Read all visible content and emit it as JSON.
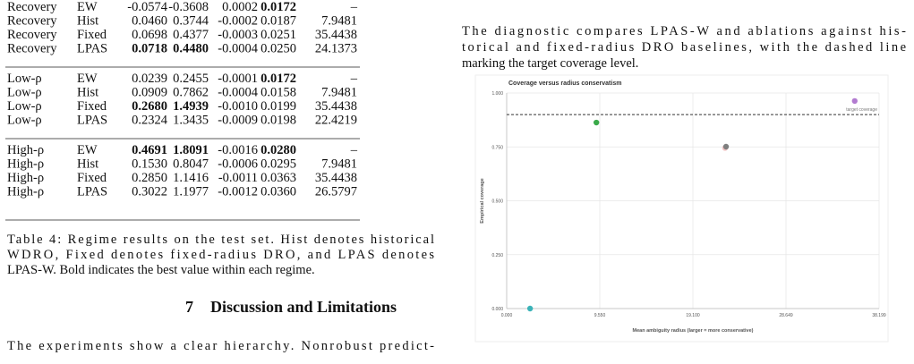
{
  "table": {
    "rows": [
      [
        "Recovery",
        "EW",
        "-0.0574",
        "-0.3608",
        "0.0002",
        "0.0172",
        "–"
      ],
      [
        "Recovery",
        "Hist",
        "0.0460",
        "0.3744",
        "-0.0002",
        "0.0187",
        "7.9481"
      ],
      [
        "Recovery",
        "Fixed",
        "0.0698",
        "0.4377",
        "-0.0003",
        "0.0251",
        "35.4438"
      ],
      [
        "Recovery",
        "LPAS",
        "0.0718",
        "0.4480",
        "-0.0004",
        "0.0250",
        "24.1373"
      ],
      [
        "Low-ρ",
        "EW",
        "0.0239",
        "0.2455",
        "-0.0001",
        "0.0172",
        "–"
      ],
      [
        "Low-ρ",
        "Hist",
        "0.0909",
        "0.7862",
        "-0.0004",
        "0.0158",
        "7.9481"
      ],
      [
        "Low-ρ",
        "Fixed",
        "0.2680",
        "1.4939",
        "-0.0010",
        "0.0199",
        "35.4438"
      ],
      [
        "Low-ρ",
        "LPAS",
        "0.2324",
        "1.3435",
        "-0.0009",
        "0.0198",
        "22.4219"
      ],
      [
        "High-ρ",
        "EW",
        "0.4691",
        "1.8091",
        "-0.0016",
        "0.0280",
        "–"
      ],
      [
        "High-ρ",
        "Hist",
        "0.1530",
        "0.8047",
        "-0.0006",
        "0.0295",
        "7.9481"
      ],
      [
        "High-ρ",
        "Fixed",
        "0.2850",
        "1.1416",
        "-0.0011",
        "0.0363",
        "35.4438"
      ],
      [
        "High-ρ",
        "LPAS",
        "0.3022",
        "1.1977",
        "-0.0012",
        "0.0360",
        "26.5797"
      ]
    ],
    "bold": [
      [
        0,
        5
      ],
      [
        3,
        2
      ],
      [
        3,
        3
      ],
      [
        4,
        5
      ],
      [
        6,
        2
      ],
      [
        6,
        3
      ],
      [
        8,
        2
      ],
      [
        8,
        3
      ],
      [
        8,
        5
      ]
    ],
    "caption": [
      "Table 4: Regime results on the test set. Hist denotes historical",
      "WDRO, Fixed denotes fixed-radius DRO, and LPAS denotes",
      "LPAS-W. Bold indicates the best value within each regime."
    ]
  },
  "section": {
    "number": "7",
    "title": "Discussion and Limitations"
  },
  "body": [
    "The experiments show a clear hierarchy. Nonrobust predict-"
  ],
  "right_text": [
    "The diagnostic compares LPAS-W and ablations against his-",
    "torical and fixed-radius DRO baselines, with the dashed line",
    "marking the target coverage level."
  ],
  "chart_data": {
    "type": "scatter",
    "title": "Coverage versus radius conservatism",
    "x_label": "Mean ambiguity radius (larger = more conservative)",
    "y_label": "Empirical coverage",
    "xlim": [
      0,
      38.199
    ],
    "ylim": [
      0,
      1
    ],
    "xticks": [
      {
        "value": 0,
        "label": "0.000"
      },
      {
        "value": 9.55,
        "label": "9.550"
      },
      {
        "value": 19.1,
        "label": "19.100"
      },
      {
        "value": 28.649,
        "label": "28.649"
      },
      {
        "value": 38.199,
        "label": "38.199"
      }
    ],
    "yticks": [
      {
        "value": 0,
        "label": "0.000"
      },
      {
        "value": 0.25,
        "label": "0.250"
      },
      {
        "value": 0.5,
        "label": "0.500"
      },
      {
        "value": 0.75,
        "label": "0.750"
      },
      {
        "value": 1,
        "label": "1.000"
      }
    ],
    "grid": true,
    "reference_line": {
      "value": 0.9,
      "label": "target coverage",
      "style": "dashed"
    },
    "series": [
      {
        "color": "#3bb3b8",
        "x": [
          2.4
        ],
        "values": [
          0
        ]
      },
      {
        "color": "#3aaa4a",
        "x": [
          9.2
        ],
        "values": [
          0.863
        ]
      },
      {
        "color": "#f2c4c4",
        "x": [
          22.4
        ],
        "values": [
          0.745
        ]
      },
      {
        "color": "#7f7f7f",
        "x": [
          22.5
        ],
        "values": [
          0.751
        ]
      },
      {
        "color": "#b27bd0",
        "x": [
          35.7
        ],
        "values": [
          0.963
        ]
      }
    ]
  }
}
